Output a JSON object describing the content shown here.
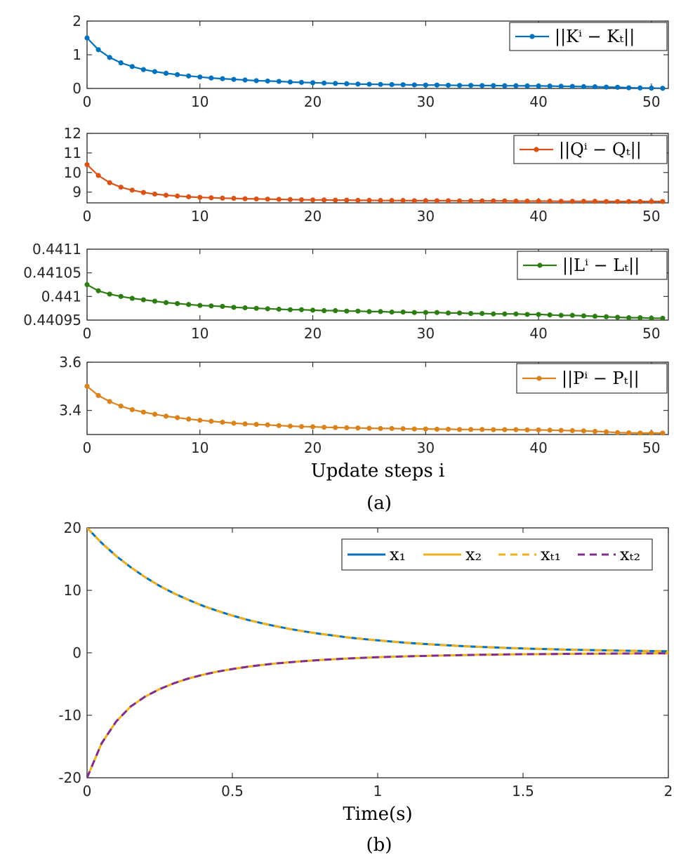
{
  "figure": {
    "caption_a": "(a)",
    "caption_b": "(b)"
  },
  "chart_data": [
    {
      "type": "line",
      "panel": "a-1",
      "legend_label": "||Kⁱ − Kₜ||",
      "legend_placement": "top-right",
      "color": "#0072BD",
      "markers": true,
      "x": [
        0,
        1,
        2,
        3,
        4,
        5,
        6,
        7,
        8,
        9,
        10,
        11,
        12,
        13,
        14,
        15,
        16,
        17,
        18,
        19,
        20,
        21,
        22,
        23,
        24,
        25,
        26,
        27,
        28,
        29,
        30,
        31,
        32,
        33,
        34,
        35,
        36,
        37,
        38,
        39,
        40,
        41,
        42,
        43,
        44,
        45,
        46,
        47,
        48,
        49,
        50,
        51
      ],
      "y": [
        1.5,
        1.15,
        0.92,
        0.76,
        0.65,
        0.56,
        0.5,
        0.45,
        0.41,
        0.37,
        0.34,
        0.31,
        0.29,
        0.27,
        0.25,
        0.23,
        0.22,
        0.21,
        0.19,
        0.18,
        0.17,
        0.16,
        0.15,
        0.14,
        0.13,
        0.125,
        0.12,
        0.115,
        0.11,
        0.105,
        0.1,
        0.1,
        0.095,
        0.09,
        0.09,
        0.085,
        0.085,
        0.08,
        0.08,
        0.075,
        0.075,
        0.07,
        0.065,
        0.06,
        0.055,
        0.05,
        0.04,
        0.035,
        0.02,
        0.015,
        0.01,
        0.005
      ],
      "xlim": [
        0,
        51.5
      ],
      "ylim": [
        0,
        2
      ],
      "xticks": [
        "0",
        "10",
        "20",
        "30",
        "40",
        "50"
      ],
      "yticks": [
        "0",
        "1",
        "2"
      ]
    },
    {
      "type": "line",
      "panel": "a-2",
      "legend_label": "||Qⁱ − Qₜ||",
      "legend_placement": "top-right",
      "color": "#D95319",
      "markers": true,
      "x": [
        0,
        1,
        2,
        3,
        4,
        5,
        6,
        7,
        8,
        9,
        10,
        11,
        12,
        13,
        14,
        15,
        16,
        17,
        18,
        19,
        20,
        21,
        22,
        23,
        24,
        25,
        26,
        27,
        28,
        29,
        30,
        31,
        32,
        33,
        34,
        35,
        36,
        37,
        38,
        39,
        40,
        41,
        42,
        43,
        44,
        45,
        46,
        47,
        48,
        49,
        50,
        51
      ],
      "y": [
        10.4,
        9.85,
        9.48,
        9.25,
        9.1,
        8.98,
        8.9,
        8.84,
        8.8,
        8.76,
        8.73,
        8.71,
        8.69,
        8.68,
        8.66,
        8.65,
        8.64,
        8.63,
        8.62,
        8.61,
        8.6,
        8.6,
        8.59,
        8.59,
        8.58,
        8.58,
        8.57,
        8.57,
        8.57,
        8.56,
        8.56,
        8.56,
        8.56,
        8.55,
        8.55,
        8.55,
        8.55,
        8.55,
        8.54,
        8.54,
        8.54,
        8.54,
        8.53,
        8.53,
        8.53,
        8.53,
        8.52,
        8.52,
        8.52,
        8.52,
        8.52,
        8.52
      ],
      "xlim": [
        0,
        51.5
      ],
      "ylim": [
        8.45,
        12
      ],
      "xticks": [
        "0",
        "10",
        "20",
        "30",
        "40",
        "50"
      ],
      "yticks": [
        "9",
        "10",
        "11",
        "12"
      ]
    },
    {
      "type": "line",
      "panel": "a-3",
      "legend_label": "||Lⁱ − Lₜ||",
      "legend_placement": "top-right",
      "color": "#2E7D14",
      "markers": true,
      "x": [
        0,
        1,
        2,
        3,
        4,
        5,
        6,
        7,
        8,
        9,
        10,
        11,
        12,
        13,
        14,
        15,
        16,
        17,
        18,
        19,
        20,
        21,
        22,
        23,
        24,
        25,
        26,
        27,
        28,
        29,
        30,
        31,
        32,
        33,
        34,
        35,
        36,
        37,
        38,
        39,
        40,
        41,
        42,
        43,
        44,
        45,
        46,
        47,
        48,
        49,
        50,
        51
      ],
      "y": [
        0.441025,
        0.441012,
        0.441005,
        0.441,
        0.440996,
        0.440993,
        0.44099,
        0.440987,
        0.440985,
        0.440983,
        0.440981,
        0.44098,
        0.440979,
        0.440977,
        0.440976,
        0.440975,
        0.440974,
        0.440973,
        0.440972,
        0.440972,
        0.440971,
        0.44097,
        0.44097,
        0.440969,
        0.440969,
        0.440968,
        0.440968,
        0.440967,
        0.440967,
        0.440966,
        0.440966,
        0.440966,
        0.440965,
        0.440965,
        0.440964,
        0.440964,
        0.440963,
        0.440963,
        0.440963,
        0.440962,
        0.440962,
        0.440961,
        0.44096,
        0.44096,
        0.440959,
        0.440958,
        0.440957,
        0.440956,
        0.440955,
        0.440955,
        0.440954,
        0.440954
      ],
      "xlim": [
        0,
        51.5
      ],
      "ylim": [
        0.44095,
        0.4411
      ],
      "xticks": [
        "0",
        "10",
        "20",
        "30",
        "40",
        "50"
      ],
      "yticks": [
        "0.44095",
        "0.441",
        "0.44105",
        "0.4411"
      ]
    },
    {
      "type": "line",
      "panel": "a-4",
      "legend_label": "||Pⁱ − Pₜ||",
      "legend_placement": "top-right",
      "color": "#D9831F",
      "markers": true,
      "x": [
        0,
        1,
        2,
        3,
        4,
        5,
        6,
        7,
        8,
        9,
        10,
        11,
        12,
        13,
        14,
        15,
        16,
        17,
        18,
        19,
        20,
        21,
        22,
        23,
        24,
        25,
        26,
        27,
        28,
        29,
        30,
        31,
        32,
        33,
        34,
        35,
        36,
        37,
        38,
        39,
        40,
        41,
        42,
        43,
        44,
        45,
        46,
        47,
        48,
        49,
        50,
        51
      ],
      "y": [
        3.5,
        3.462,
        3.437,
        3.418,
        3.403,
        3.393,
        3.384,
        3.376,
        3.37,
        3.364,
        3.359,
        3.355,
        3.351,
        3.347,
        3.344,
        3.342,
        3.34,
        3.337,
        3.335,
        3.333,
        3.332,
        3.33,
        3.329,
        3.328,
        3.327,
        3.326,
        3.325,
        3.325,
        3.324,
        3.323,
        3.323,
        3.322,
        3.322,
        3.321,
        3.321,
        3.321,
        3.32,
        3.32,
        3.32,
        3.319,
        3.319,
        3.318,
        3.317,
        3.316,
        3.315,
        3.313,
        3.311,
        3.308,
        3.307,
        3.306,
        3.306,
        3.306
      ],
      "xlim": [
        0,
        51.5
      ],
      "ylim": [
        3.3,
        3.6
      ],
      "xticks": [
        "0",
        "10",
        "20",
        "30",
        "40",
        "50"
      ],
      "yticks": [
        "3.4",
        "3.6"
      ],
      "xlabel": "Update steps i"
    },
    {
      "type": "line",
      "panel": "b",
      "xlabel": "Time(s)",
      "xlim": [
        0,
        2
      ],
      "ylim": [
        -20,
        20
      ],
      "xticks": [
        "0",
        "0.5",
        "1",
        "1.5",
        "2"
      ],
      "yticks": [
        "-20",
        "-10",
        "0",
        "10",
        "20"
      ],
      "legend_placement": "top-right",
      "x": [
        0,
        0.05,
        0.1,
        0.15,
        0.2,
        0.25,
        0.3,
        0.35,
        0.4,
        0.45,
        0.5,
        0.55,
        0.6,
        0.65,
        0.7,
        0.75,
        0.8,
        0.85,
        0.9,
        0.95,
        1.0,
        1.05,
        1.1,
        1.15,
        1.2,
        1.25,
        1.3,
        1.35,
        1.4,
        1.45,
        1.5,
        1.55,
        1.6,
        1.65,
        1.7,
        1.75,
        1.8,
        1.85,
        1.9,
        1.95,
        2.0
      ],
      "series": [
        {
          "name": "x₁",
          "color": "#0072BD",
          "dash": "solid",
          "values": [
            20,
            17.6,
            15.5,
            13.7,
            12.1,
            10.7,
            9.5,
            8.45,
            7.5,
            6.7,
            5.95,
            5.3,
            4.75,
            4.25,
            3.8,
            3.4,
            3.05,
            2.75,
            2.45,
            2.2,
            2.0,
            1.8,
            1.6,
            1.45,
            1.3,
            1.18,
            1.06,
            0.96,
            0.86,
            0.78,
            0.7,
            0.63,
            0.57,
            0.51,
            0.46,
            0.42,
            0.38,
            0.34,
            0.31,
            0.28,
            0.25
          ]
        },
        {
          "name": "x₂",
          "color": "#EDB120",
          "dash": "solid",
          "values": [
            -20,
            -14.5,
            -11.0,
            -8.6,
            -7.0,
            -5.8,
            -4.85,
            -4.1,
            -3.5,
            -3.0,
            -2.6,
            -2.25,
            -1.95,
            -1.7,
            -1.5,
            -1.32,
            -1.16,
            -1.02,
            -0.9,
            -0.8,
            -0.71,
            -0.63,
            -0.56,
            -0.5,
            -0.45,
            -0.4,
            -0.36,
            -0.32,
            -0.29,
            -0.26,
            -0.23,
            -0.21,
            -0.19,
            -0.17,
            -0.15,
            -0.14,
            -0.12,
            -0.11,
            -0.1,
            -0.09,
            -0.08
          ]
        },
        {
          "name": "xₜ₁",
          "color": "#EDB120",
          "dash": "dashed",
          "values": [
            20,
            17.6,
            15.5,
            13.7,
            12.1,
            10.7,
            9.5,
            8.45,
            7.5,
            6.7,
            5.95,
            5.3,
            4.75,
            4.25,
            3.8,
            3.4,
            3.05,
            2.75,
            2.45,
            2.2,
            2.0,
            1.8,
            1.6,
            1.45,
            1.3,
            1.18,
            1.06,
            0.96,
            0.86,
            0.78,
            0.7,
            0.63,
            0.57,
            0.51,
            0.46,
            0.42,
            0.38,
            0.34,
            0.31,
            0.28,
            0.25
          ]
        },
        {
          "name": "xₜ₂",
          "color": "#7E2F8E",
          "dash": "dashed",
          "values": [
            -20,
            -14.5,
            -11.0,
            -8.6,
            -7.0,
            -5.8,
            -4.85,
            -4.1,
            -3.5,
            -3.0,
            -2.6,
            -2.25,
            -1.95,
            -1.7,
            -1.5,
            -1.32,
            -1.16,
            -1.02,
            -0.9,
            -0.8,
            -0.71,
            -0.63,
            -0.56,
            -0.5,
            -0.45,
            -0.4,
            -0.36,
            -0.32,
            -0.29,
            -0.26,
            -0.23,
            -0.21,
            -0.19,
            -0.17,
            -0.15,
            -0.14,
            -0.12,
            -0.11,
            -0.1,
            -0.09,
            -0.08
          ]
        }
      ]
    }
  ]
}
